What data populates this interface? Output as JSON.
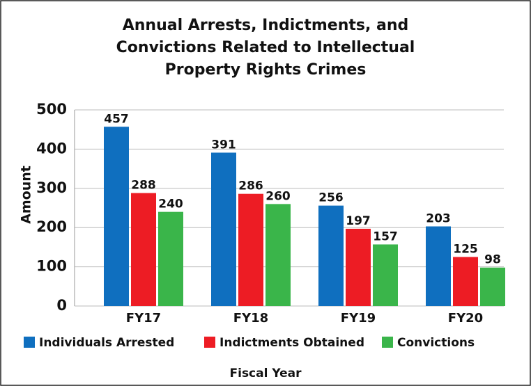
{
  "chart_data": {
    "type": "bar",
    "title": [
      "Annual Arrests, Indictments, and",
      "Convictions Related to Intellectual",
      "Property Rights Crimes"
    ],
    "x_label": "Fiscal Year",
    "y_label": "Amount",
    "categories": [
      "FY17",
      "FY18",
      "FY19",
      "FY20"
    ],
    "series": [
      {
        "name": "Individuals Arrested",
        "color": "#0f6fbf",
        "values": [
          457,
          391,
          256,
          203
        ]
      },
      {
        "name": "Indictments Obtained",
        "color": "#ed1c24",
        "values": [
          288,
          286,
          197,
          125
        ]
      },
      {
        "name": "Convictions",
        "color": "#3ab54a",
        "values": [
          240,
          260,
          157,
          98
        ]
      }
    ],
    "ylim": [
      0,
      500
    ],
    "yticks": [
      0,
      100,
      200,
      300,
      400,
      500
    ],
    "grid": true,
    "legend": "bottom"
  }
}
